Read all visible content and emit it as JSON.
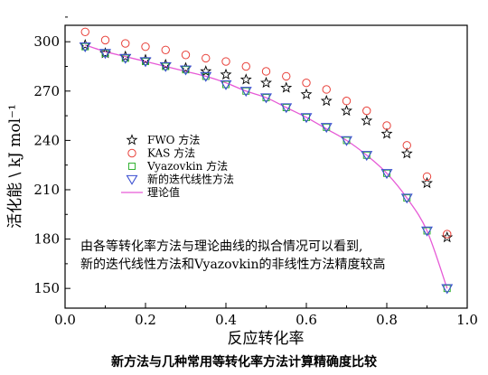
{
  "caption": "新方法与几种常用等转化率方法计算精确度比较",
  "chart_data": {
    "type": "scatter",
    "xlabel": "反应转化率",
    "ylabel": "活化能 \\ kJ mol⁻¹",
    "xlim": [
      0.0,
      1.0
    ],
    "ylim": [
      138,
      310
    ],
    "xticks": [
      "0.0",
      "0.2",
      "0.4",
      "0.6",
      "0.8",
      "1.0"
    ],
    "yticks": [
      "150",
      "180",
      "210",
      "240",
      "270",
      "300"
    ],
    "x": [
      0.05,
      0.1,
      0.15,
      0.2,
      0.25,
      0.3,
      0.35,
      0.4,
      0.45,
      0.5,
      0.55,
      0.6,
      0.65,
      0.7,
      0.75,
      0.8,
      0.85,
      0.9,
      0.95
    ],
    "legend_position": "middle-left",
    "series": [
      {
        "name": "FWO 方法",
        "marker": "star",
        "color": "#000000",
        "values": [
          298,
          293,
          291,
          289,
          286,
          284,
          282,
          280,
          277,
          275,
          272,
          268,
          264,
          258,
          252,
          244,
          232,
          214,
          181
        ]
      },
      {
        "name": "KAS 方法",
        "marker": "circle",
        "color": "#e8413a",
        "values": [
          306,
          301,
          299,
          297,
          295,
          292,
          290,
          288,
          285,
          282,
          279,
          275,
          271,
          264,
          258,
          249,
          237,
          218,
          183
        ]
      },
      {
        "name": "Vyazovkin 方法",
        "marker": "square",
        "color": "#33b233",
        "values": [
          297,
          293,
          290,
          288,
          285,
          283,
          279,
          274,
          270,
          266,
          260,
          254,
          248,
          240,
          231,
          220,
          205,
          185,
          150
        ]
      },
      {
        "name": "新的迭代线性方法",
        "marker": "triangle-down",
        "color": "#3b4fd1",
        "values": [
          297,
          293,
          290,
          288,
          285,
          283,
          279,
          274,
          270,
          266,
          260,
          254,
          248,
          240,
          231,
          220,
          205,
          185,
          150
        ]
      },
      {
        "name": "理论值",
        "marker": "line",
        "color": "#e65ad6",
        "curve": {
          "x": [
            0.05,
            0.1,
            0.15,
            0.2,
            0.25,
            0.3,
            0.35,
            0.4,
            0.45,
            0.5,
            0.55,
            0.6,
            0.65,
            0.7,
            0.75,
            0.8,
            0.85,
            0.9,
            0.95
          ],
          "y": [
            298,
            294,
            291,
            288,
            285,
            282,
            279,
            275,
            270,
            266,
            260,
            254,
            247,
            240,
            231,
            220,
            205,
            185,
            150
          ]
        }
      }
    ],
    "annotation": {
      "lines": [
        "由各等转化率方法与理论曲线的拟合情况可以看到,",
        "新的迭代线性方法和Vyazovkin的非线性方法精度较高"
      ]
    }
  }
}
